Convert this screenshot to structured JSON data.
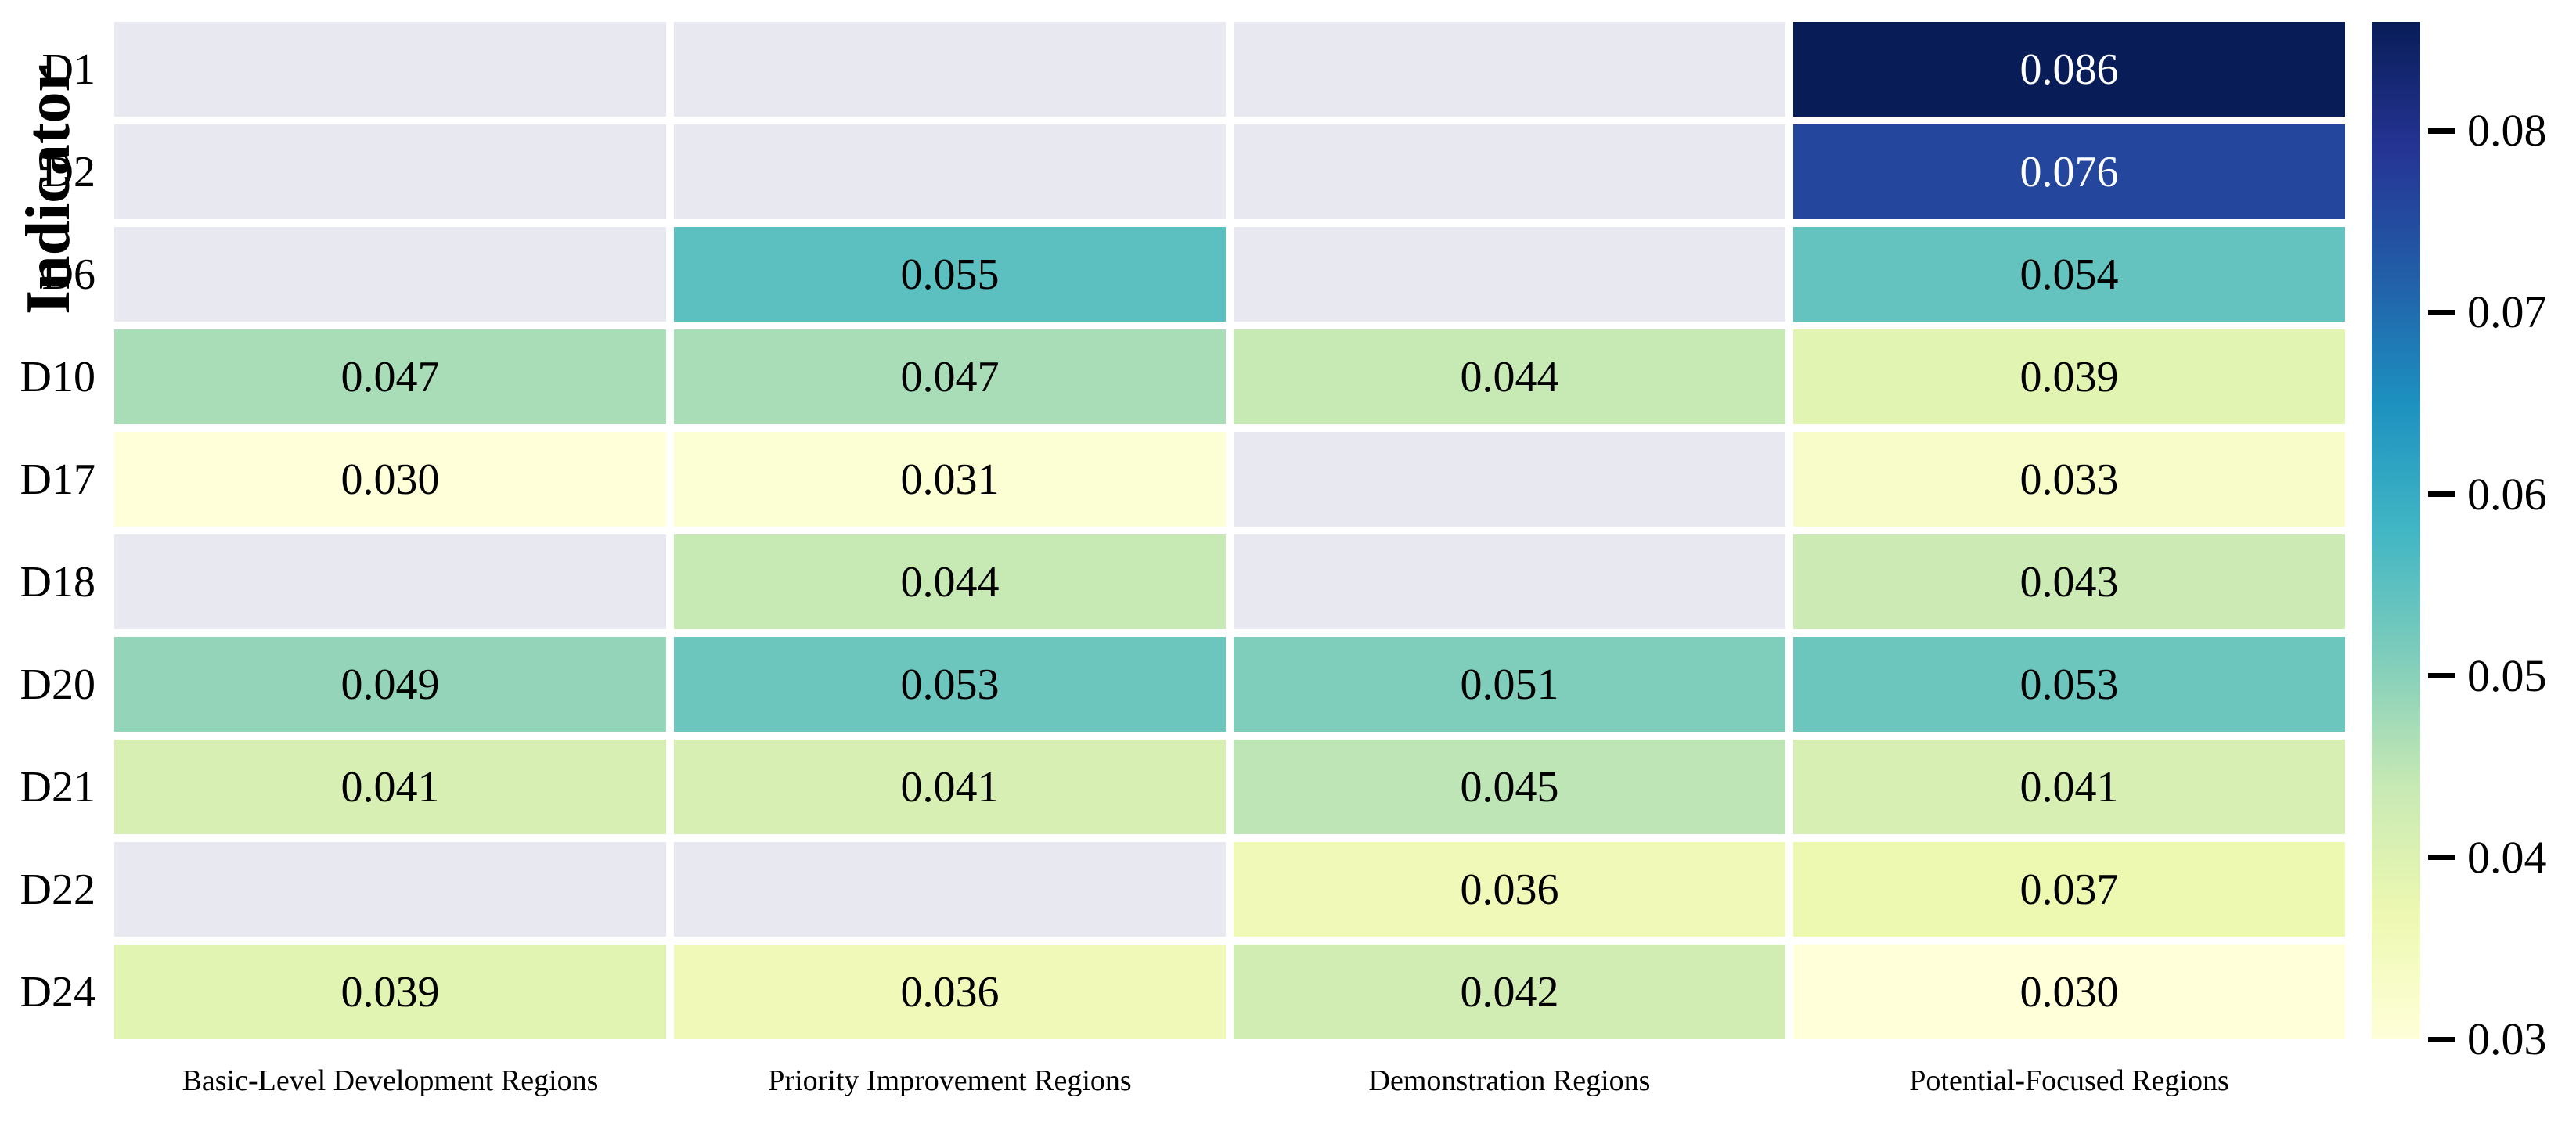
{
  "chart_data": {
    "type": "heatmap",
    "title": "",
    "xlabel": "",
    "ylabel": "Indicator",
    "rows": [
      "D1",
      "D2",
      "D6",
      "D10",
      "D17",
      "D18",
      "D20",
      "D21",
      "D22",
      "D24"
    ],
    "columns": [
      "Basic-Level Development Regions",
      "Priority Improvement Regions",
      "Demonstration Regions",
      "Potential-Focused Regions"
    ],
    "values": [
      [
        null,
        null,
        null,
        0.086
      ],
      [
        null,
        null,
        null,
        0.076
      ],
      [
        null,
        0.055,
        null,
        0.054
      ],
      [
        0.047,
        0.047,
        0.044,
        0.039
      ],
      [
        0.03,
        0.031,
        null,
        0.033
      ],
      [
        null,
        0.044,
        null,
        0.043
      ],
      [
        0.049,
        0.053,
        0.051,
        0.053
      ],
      [
        0.041,
        0.041,
        0.045,
        0.041
      ],
      [
        null,
        null,
        0.036,
        0.037
      ],
      [
        0.039,
        0.036,
        0.042,
        0.03
      ]
    ],
    "value_decimals": 3,
    "vmin": 0.03,
    "vmax": 0.086,
    "colormap": "YlGnBu",
    "colormap_stops": [
      {
        "t": 0.0,
        "color": "#ffffd9"
      },
      {
        "t": 0.125,
        "color": "#edf8b1"
      },
      {
        "t": 0.25,
        "color": "#c7e9b4"
      },
      {
        "t": 0.375,
        "color": "#7fcdbb"
      },
      {
        "t": 0.5,
        "color": "#41b6c4"
      },
      {
        "t": 0.625,
        "color": "#1d91c0"
      },
      {
        "t": 0.75,
        "color": "#225ea8"
      },
      {
        "t": 0.875,
        "color": "#253494"
      },
      {
        "t": 1.0,
        "color": "#081d58"
      }
    ],
    "masked_color": "#e8e8f0",
    "grid_gap_color": "#ffffff",
    "colorbar_ticks": [
      "0.08",
      "0.07",
      "0.06",
      "0.05",
      "0.04",
      "0.03"
    ],
    "legend_position": "right"
  }
}
